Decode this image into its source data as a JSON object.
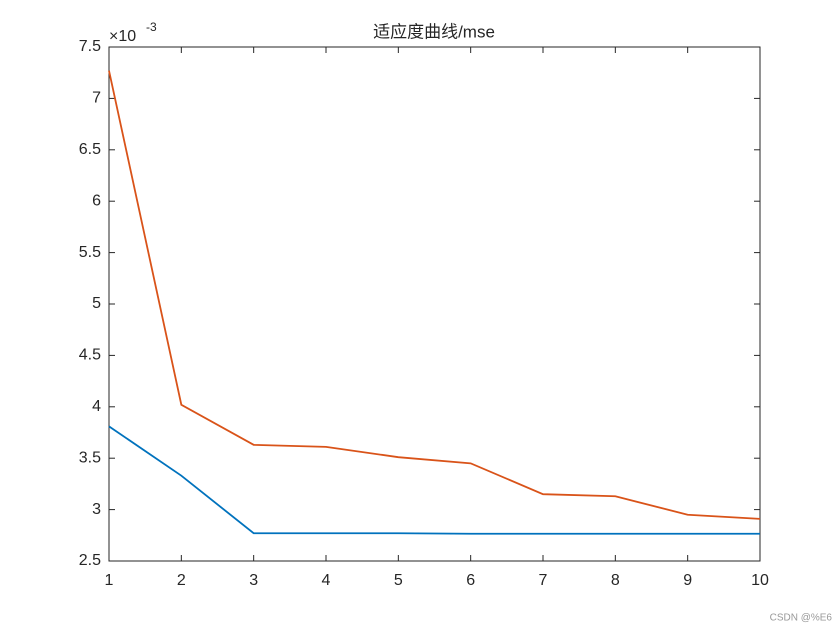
{
  "chart_data": {
    "type": "line",
    "title": "适应度曲线/mse",
    "y_multiplier": {
      "base": "×10",
      "exponent": "-3"
    },
    "x": [
      1,
      2,
      3,
      4,
      5,
      6,
      7,
      8,
      9,
      10
    ],
    "series": [
      {
        "color": "#0072bd",
        "values": [
          3.81,
          3.33,
          2.77,
          2.77,
          2.77,
          2.765,
          2.765,
          2.765,
          2.765,
          2.765
        ]
      },
      {
        "color": "#d95319",
        "values": [
          7.27,
          4.02,
          3.63,
          3.61,
          3.51,
          3.45,
          3.15,
          3.13,
          2.95,
          2.91
        ]
      }
    ],
    "xlim": [
      1,
      10
    ],
    "xticks": [
      1,
      2,
      3,
      4,
      5,
      6,
      7,
      8,
      9,
      10
    ],
    "ylim": [
      2.5,
      7.5
    ],
    "yticks": [
      2.5,
      3,
      3.5,
      4,
      4.5,
      5,
      5.5,
      6,
      6.5,
      7,
      7.5
    ],
    "watermark": "CSDN @%E6"
  }
}
